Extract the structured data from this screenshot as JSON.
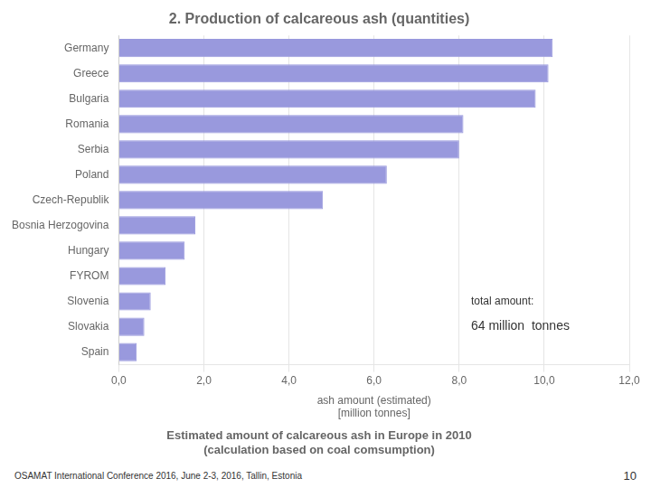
{
  "chart_data": {
    "type": "bar",
    "orientation": "horizontal",
    "title": "2. Production of calcareous ash (quantities)",
    "subtitle": [
      "Estimated amount of calcareous ash in Europe in 2010",
      "(calculation based on coal comsumption)"
    ],
    "xlabel": [
      "ash amount (estimated)",
      "[million tonnes]"
    ],
    "annotations": [
      "total amount:",
      "64 million  tonnes"
    ],
    "footer": "OSAMAT International Conference 2016, June 2-3, 2016, Tallin, Estonia",
    "page_number": "10",
    "categories": [
      "Germany",
      "Greece",
      "Bulgaria",
      "Romania",
      "Serbia",
      "Poland",
      "Czech-Republik",
      "Bosnia Herzogovina",
      "Hungary",
      "FYROM",
      "Slovenia",
      "Slovakia",
      "Spain"
    ],
    "values": [
      10.2,
      10.1,
      9.8,
      8.1,
      8.0,
      6.3,
      4.8,
      1.8,
      1.55,
      1.1,
      0.75,
      0.6,
      0.42
    ],
    "color": "#9999dd",
    "xlim": [
      0,
      12.0
    ],
    "xticks": [
      {
        "value": 0.0,
        "label": "0,0"
      },
      {
        "value": 2.0,
        "label": "2,0"
      },
      {
        "value": 4.0,
        "label": "4,0"
      },
      {
        "value": 6.0,
        "label": "6,0"
      },
      {
        "value": 8.0,
        "label": "8,0"
      },
      {
        "value": 10.0,
        "label": "10,0"
      },
      {
        "value": 12.0,
        "label": "12,0"
      }
    ],
    "grid": true
  }
}
